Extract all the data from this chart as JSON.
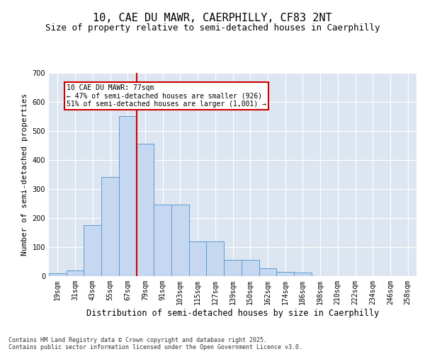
{
  "title1": "10, CAE DU MAWR, CAERPHILLY, CF83 2NT",
  "title2": "Size of property relative to semi-detached houses in Caerphilly",
  "xlabel": "Distribution of semi-detached houses by size in Caerphilly",
  "ylabel": "Number of semi-detached properties",
  "bin_labels": [
    "19sqm",
    "31sqm",
    "43sqm",
    "55sqm",
    "67sqm",
    "79sqm",
    "91sqm",
    "103sqm",
    "115sqm",
    "127sqm",
    "139sqm",
    "150sqm",
    "162sqm",
    "174sqm",
    "186sqm",
    "198sqm",
    "210sqm",
    "222sqm",
    "234sqm",
    "246sqm",
    "258sqm"
  ],
  "bar_values": [
    10,
    20,
    175,
    340,
    550,
    455,
    245,
    245,
    120,
    120,
    55,
    55,
    28,
    14,
    12,
    0,
    0,
    0,
    0,
    0,
    0
  ],
  "bar_color": "#c5d8f0",
  "bar_edge_color": "#5b9bd5",
  "vline_color": "#cc0000",
  "annotation_text": "10 CAE DU MAWR: 77sqm\n← 47% of semi-detached houses are smaller (926)\n51% of semi-detached houses are larger (1,001) →",
  "annotation_box_color": "#ffffff",
  "annotation_box_edge_color": "#cc0000",
  "ylim": [
    0,
    700
  ],
  "yticks": [
    0,
    100,
    200,
    300,
    400,
    500,
    600,
    700
  ],
  "background_color": "#dde6f0",
  "footer_text": "Contains HM Land Registry data © Crown copyright and database right 2025.\nContains public sector information licensed under the Open Government Licence v3.0.",
  "title1_fontsize": 11,
  "title2_fontsize": 9,
  "xlabel_fontsize": 8.5,
  "ylabel_fontsize": 8,
  "tick_fontsize": 7,
  "footer_fontsize": 6,
  "vline_pos": 4.5
}
